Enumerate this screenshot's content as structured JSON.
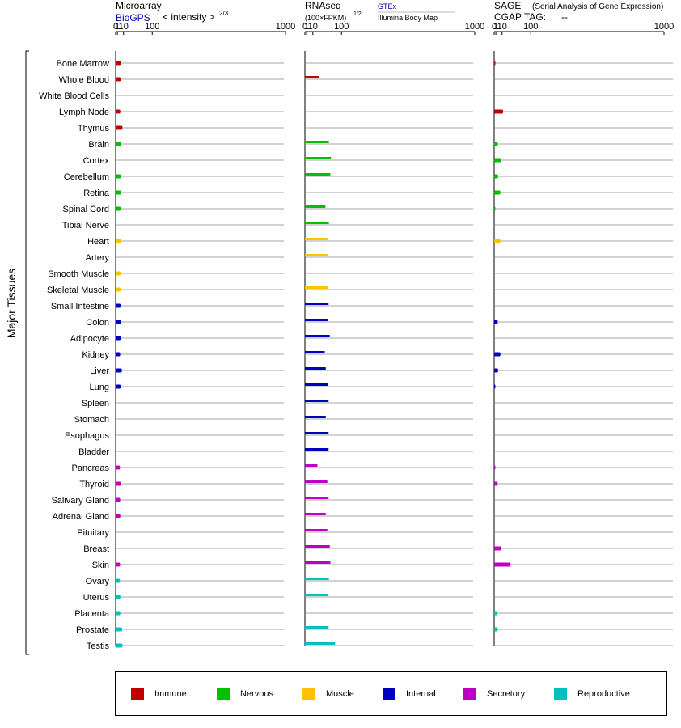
{
  "panels": {
    "microarray": {
      "title": "Microarray",
      "source": "BioGPS",
      "metric": "< intensity >",
      "metric_exp": "2/3"
    },
    "rnaseq": {
      "title": "RNAseq",
      "metric": "(100×FPKM)",
      "metric_exp": "1/2",
      "source_a": "GTEx",
      "source_b": "Illumina Body Map"
    },
    "sage": {
      "title": "SAGE",
      "subtitle": "(Serial Analysis of Gene Expression)",
      "tag_label": "CGAP TAG:",
      "tag_value": "--"
    }
  },
  "axis_side_label": "Major Tissues",
  "chart_data": {
    "type": "bar",
    "orientation": "horizontal",
    "x_scale": "power_2_3",
    "xlim": [
      0,
      1000
    ],
    "x_ticks": [
      "0",
      "1",
      "10",
      "100",
      "1000"
    ],
    "x_tick_values": [
      0,
      1,
      10,
      100,
      1000
    ],
    "categories": [
      "Bone Marrow",
      "Whole Blood",
      "White Blood Cells",
      "Lymph Node",
      "Thymus",
      "Brain",
      "Cortex",
      "Cerebellum",
      "Retina",
      "Spinal Cord",
      "Tibial Nerve",
      "Heart",
      "Artery",
      "Smooth Muscle",
      "Skeletal Muscle",
      "Small Intestine",
      "Colon",
      "Adipocyte",
      "Kidney",
      "Liver",
      "Lung",
      "Spleen",
      "Stomach",
      "Esophagus",
      "Bladder",
      "Pancreas",
      "Thyroid",
      "Salivary Gland",
      "Adrenal Gland",
      "Pituitary",
      "Breast",
      "Skin",
      "Ovary",
      "Uterus",
      "Placenta",
      "Prostate",
      "Testis"
    ],
    "tissue_groups": [
      "Immune",
      "Immune",
      "Immune",
      "Immune",
      "Immune",
      "Nervous",
      "Nervous",
      "Nervous",
      "Nervous",
      "Nervous",
      "Nervous",
      "Muscle",
      "Muscle",
      "Muscle",
      "Muscle",
      "Internal",
      "Internal",
      "Internal",
      "Internal",
      "Internal",
      "Internal",
      "Internal",
      "Internal",
      "Internal",
      "Internal",
      "Secretory",
      "Secretory",
      "Secretory",
      "Secretory",
      "Secretory",
      "Secretory",
      "Secretory",
      "Reproductive",
      "Reproductive",
      "Reproductive",
      "Reproductive",
      "Reproductive"
    ],
    "series": [
      {
        "name": "Microarray (BioGPS)",
        "values": [
          5,
          5,
          null,
          4.5,
          8,
          6,
          null,
          5,
          6,
          5,
          null,
          5.5,
          null,
          5,
          5,
          5,
          5,
          5,
          4.3,
          7,
          5,
          null,
          null,
          null,
          null,
          4,
          5.5,
          4.3,
          4.5,
          null,
          null,
          4.2,
          4,
          4.5,
          4.5,
          7.5,
          8
        ]
      },
      {
        "name": "RNAseq (GTEx)",
        "values": [
          null,
          25,
          null,
          null,
          null,
          53,
          60,
          58,
          null,
          42,
          53,
          null,
          null,
          null,
          null,
          null,
          null,
          null,
          null,
          null,
          null,
          null,
          null,
          null,
          null,
          null,
          null,
          null,
          null,
          null,
          null,
          null,
          null,
          null,
          null,
          null,
          null
        ]
      },
      {
        "name": "RNAseq (Illumina Body Map)",
        "values": [
          null,
          null,
          null,
          null,
          null,
          null,
          null,
          null,
          null,
          null,
          null,
          48,
          48,
          null,
          50,
          52,
          50,
          56,
          40,
          43,
          50,
          52,
          43,
          52,
          52,
          20,
          48,
          52,
          43,
          48,
          56,
          58,
          53,
          50,
          null,
          52,
          75
        ]
      },
      {
        "name": "SAGE (CGAP)",
        "values": [
          0.001,
          null,
          null,
          12,
          null,
          3,
          8,
          3.5,
          7,
          0.001,
          null,
          7,
          null,
          null,
          null,
          null,
          3,
          null,
          7,
          3.5,
          0.001,
          null,
          null,
          null,
          null,
          0.001,
          3,
          null,
          null,
          null,
          9,
          30,
          null,
          null,
          2.5,
          3,
          null
        ]
      }
    ]
  },
  "legend": [
    {
      "label": "Immune",
      "color": "#C00000"
    },
    {
      "label": "Nervous",
      "color": "#00C000"
    },
    {
      "label": "Muscle",
      "color": "#FFC000"
    },
    {
      "label": "Internal",
      "color": "#0000C0"
    },
    {
      "label": "Secretory",
      "color": "#C000C0"
    },
    {
      "label": "Reproductive",
      "color": "#00C0C0"
    }
  ]
}
